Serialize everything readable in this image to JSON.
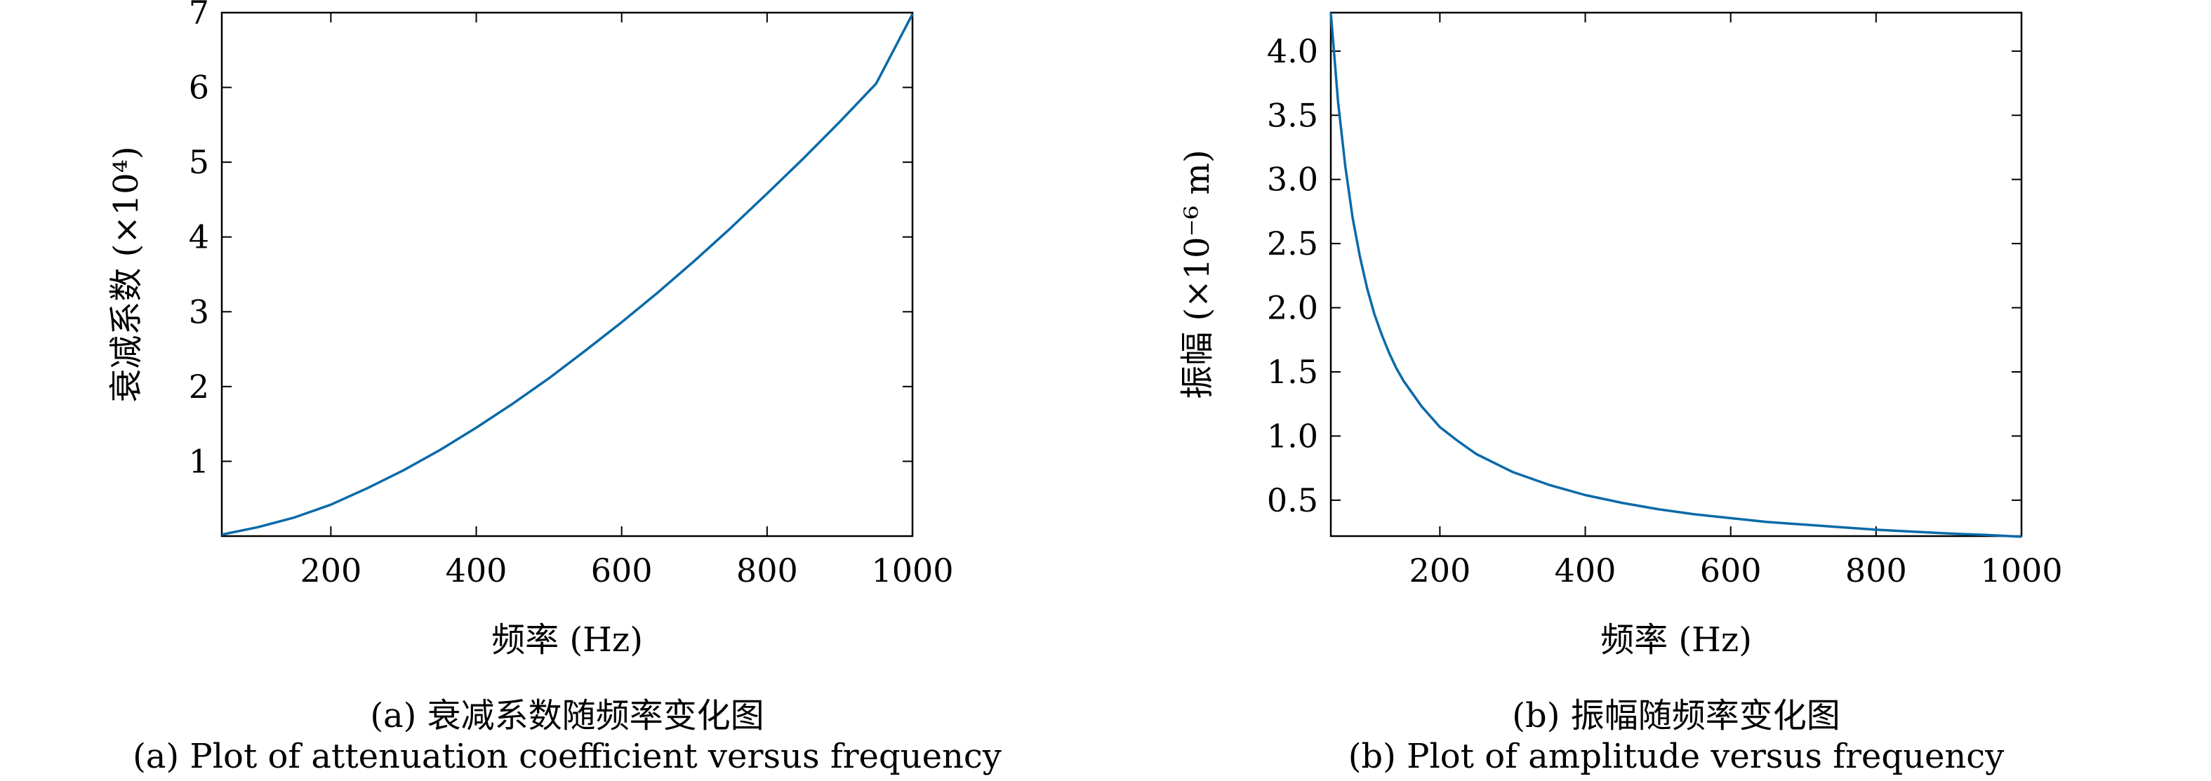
{
  "chart_data": [
    {
      "type": "line",
      "caption_zh": "(a) 衰减系数随频率变化图",
      "caption_en": "(a) Plot of attenuation coefficient versus frequency",
      "xlabel": "频率 (Hz)",
      "ylabel": "衰减系数 (×10⁴)",
      "xlim": [
        50,
        1000
      ],
      "ylim": [
        0,
        7
      ],
      "xticks": [
        200,
        400,
        600,
        800,
        1000
      ],
      "yticks": [
        1,
        2,
        3,
        4,
        5,
        6,
        7
      ],
      "ytick_labels": [
        "1",
        "2",
        "3",
        "4",
        "5",
        "6",
        "7"
      ],
      "grid": false,
      "color": "#0a6aa8",
      "series": [
        {
          "x": [
            50,
            100,
            150,
            200,
            250,
            300,
            350,
            400,
            450,
            500,
            550,
            600,
            650,
            700,
            750,
            800,
            850,
            900,
            950,
            1000
          ],
          "values": [
            0.02,
            0.12,
            0.25,
            0.42,
            0.64,
            0.88,
            1.15,
            1.45,
            1.77,
            2.11,
            2.48,
            2.86,
            3.26,
            3.68,
            4.12,
            4.58,
            5.05,
            5.54,
            6.05,
            6.98
          ]
        }
      ]
    },
    {
      "type": "line",
      "caption_zh": "(b) 振幅随频率变化图",
      "caption_en": "(b) Plot of amplitude versus frequency",
      "xlabel": "频率 (Hz)",
      "ylabel": "振幅 (×10⁻⁶ m)",
      "xlim": [
        50,
        1000
      ],
      "ylim": [
        0.22,
        4.3
      ],
      "xticks": [
        200,
        400,
        600,
        800,
        1000
      ],
      "yticks": [
        0.5,
        1.0,
        1.5,
        2.0,
        2.5,
        3.0,
        3.5,
        4.0
      ],
      "ytick_labels": [
        "0.5",
        "1.0",
        "1.5",
        "2.0",
        "2.5",
        "3.0",
        "3.5",
        "4.0"
      ],
      "grid": false,
      "color": "#0a6aa8",
      "series": [
        {
          "x": [
            50,
            60,
            70,
            80,
            90,
            100,
            110,
            120,
            130,
            140,
            150,
            175,
            200,
            225,
            250,
            300,
            350,
            400,
            450,
            500,
            550,
            600,
            650,
            700,
            750,
            800,
            850,
            900,
            950,
            1000
          ],
          "values": [
            4.3,
            3.6,
            3.1,
            2.7,
            2.4,
            2.15,
            1.95,
            1.79,
            1.65,
            1.53,
            1.43,
            1.23,
            1.07,
            0.96,
            0.86,
            0.72,
            0.62,
            0.54,
            0.48,
            0.43,
            0.39,
            0.36,
            0.33,
            0.31,
            0.29,
            0.27,
            0.255,
            0.24,
            0.23,
            0.215
          ]
        }
      ]
    }
  ]
}
